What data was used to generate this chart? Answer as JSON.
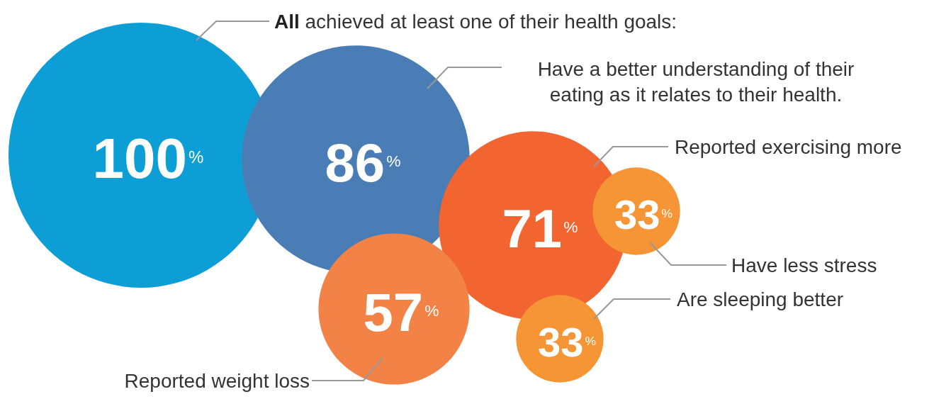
{
  "chart_data": {
    "type": "other",
    "title": "All achieved at least one of their health goals:",
    "categories": [
      null,
      "Have a better understanding of their\neating as it relates to their health.",
      "Reported exercising more",
      "Reported weight loss",
      "Have less stress",
      "Are sleeping better"
    ],
    "values": [
      100,
      86,
      71,
      57,
      33,
      33
    ],
    "value_labels": [
      "100%",
      "86%",
      "71%",
      "57%",
      "33%",
      "33%"
    ],
    "colors": [
      "#0e9ed6",
      "#4a7db5",
      "#f26430",
      "#f38246",
      "#f59535",
      "#f59535"
    ]
  }
}
